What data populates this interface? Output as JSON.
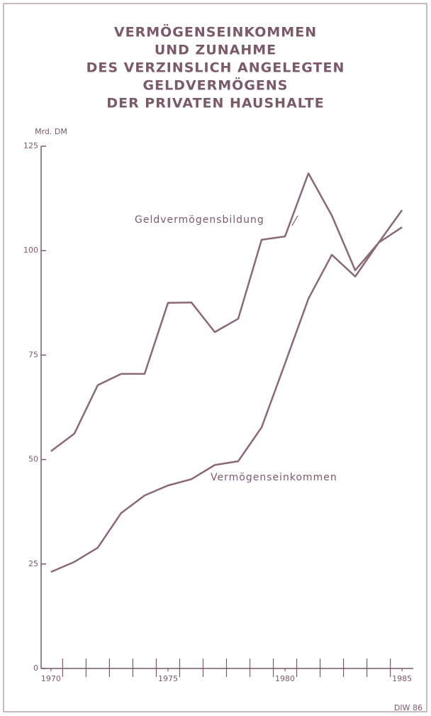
{
  "chart_data": {
    "type": "line",
    "title": [
      "VERMÖGENSEINKOMMEN",
      "UND ZUNAHME",
      "DES VERZINSLICH ANGELEGTEN",
      "GELDVERMÖGENS",
      "DER PRIVATEN HAUSHALTE"
    ],
    "y_label": "Mrd. DM",
    "source": "DIW 86",
    "x": [
      1970,
      1971,
      1972,
      1973,
      1974,
      1975,
      1976,
      1977,
      1978,
      1979,
      1980,
      1981,
      1982,
      1983,
      1984,
      1985
    ],
    "series": [
      {
        "name": "Geldvermögensbildung",
        "color": "#8a6878",
        "values": [
          52,
          56.2,
          67.8,
          70.5,
          70.5,
          87.5,
          87.6,
          80.5,
          83.7,
          102.6,
          103.4,
          118.5,
          108.4,
          95.3,
          101.9,
          109.7
        ]
      },
      {
        "name": "Vermögenseinkommen",
        "color": "#8a6878",
        "values": [
          23.1,
          25.5,
          28.9,
          37.2,
          41.4,
          43.8,
          45.3,
          48.7,
          49.6,
          57.7,
          73.0,
          88.5,
          99.0,
          93.8,
          101.9,
          105.6
        ]
      }
    ],
    "xlim": [
      1969.58,
      1985.48
    ],
    "xticks": [
      1970,
      1975,
      1980,
      1985
    ],
    "ylim": [
      0,
      125
    ],
    "yticks": [
      0,
      25,
      50,
      75,
      100,
      125
    ],
    "grid": false
  }
}
